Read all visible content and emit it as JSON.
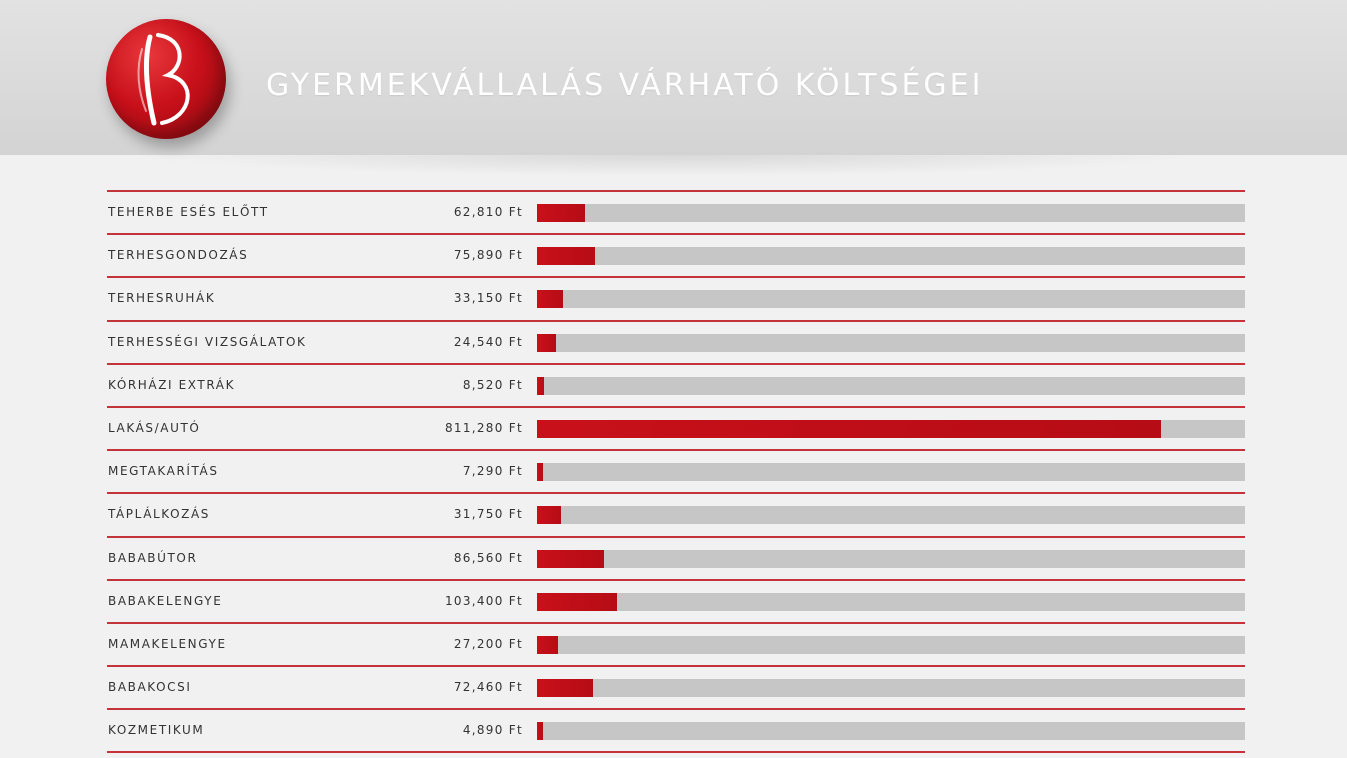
{
  "header": {
    "title": "GYERMEKVÁLLALÁS VÁRHATÓ KÖLTSÉGEI",
    "logo_icon": "b-silhouette-logo-icon"
  },
  "colors": {
    "accent": "#c8101a",
    "track": "#c6c6c6",
    "divider": "#c6323a"
  },
  "chart_data": {
    "type": "bar",
    "orientation": "horizontal",
    "title": "GYERMEKVÁLLALÁS VÁRHATÓ KÖLTSÉGEI",
    "xlim": [
      0,
      920000
    ],
    "grid": false,
    "categories": [
      "TEHERBE ESÉS ELŐTT",
      "TERHESGONDOZÁS",
      "TERHESRUHÁK",
      "TERHESSÉGI VIZSGÁLATOK",
      "KÓRHÁZI EXTRÁK",
      "LAKÁS/AUTÓ",
      "MEGTAKARÍTÁS",
      "TÁPLÁLKOZÁS",
      "BABABÚTOR",
      "BABAKELENGYE",
      "MAMAKELENGYE",
      "BABAKOCSI",
      "KOZMETIKUM"
    ],
    "values": [
      62810,
      75890,
      33150,
      24540,
      8520,
      811280,
      7290,
      31750,
      86560,
      103400,
      27200,
      72460,
      4890
    ],
    "value_labels": [
      "62,810 Ft",
      "75,890 Ft",
      "33,150 Ft",
      "24,540 Ft",
      "8,520 Ft",
      "811,280 Ft",
      "7,290 Ft",
      "31,750 Ft",
      "86,560 Ft",
      "103,400 Ft",
      "27,200 Ft",
      "72,460 Ft",
      "4,890 Ft"
    ]
  }
}
